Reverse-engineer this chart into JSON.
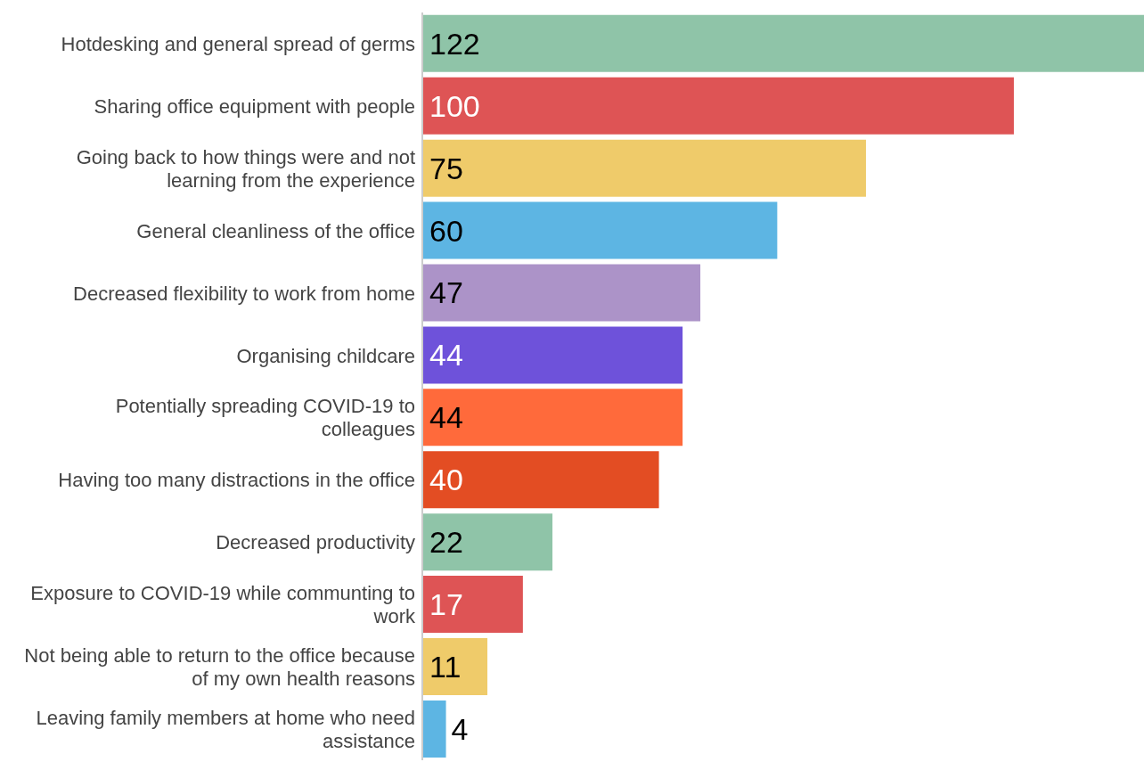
{
  "chart_data": {
    "type": "bar",
    "orientation": "horizontal",
    "data_labels": true,
    "categories": [
      "Hotdesking and general spread of germs",
      "Sharing office equipment with people",
      "Going back to how things were and not learning from the experience",
      "General cleanliness of the office",
      "Decreased flexibility to work from home",
      "Organising childcare",
      "Potentially spreading COVID-19 to colleagues",
      "Having too many distractions in the office",
      "Decreased productivity",
      "Exposure to COVID-19 while communting to work",
      "Not being able to return to the office because of my own health reasons",
      "Leaving family members at home who need assistance"
    ],
    "values": [
      122,
      100,
      75,
      60,
      47,
      44,
      44,
      40,
      22,
      17,
      11,
      4
    ],
    "colors": [
      "#8fc4a8",
      "#de5455",
      "#efcb6a",
      "#5db5e3",
      "#ac93c8",
      "#6e52da",
      "#ff6a3b",
      "#e34d23",
      "#8fc4a8",
      "#de5455",
      "#efcb6a",
      "#5db5e3"
    ]
  }
}
